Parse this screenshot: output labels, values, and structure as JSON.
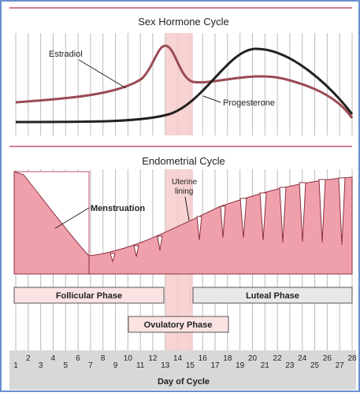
{
  "top_panel": {
    "title": "Sex Hormone Cycle",
    "labels": [
      "Estradiol",
      "Progesterone"
    ]
  },
  "bottom_panel": {
    "title": "Endometrial Cycle",
    "labels": [
      "Menstruation",
      "Uterine",
      "lining"
    ]
  },
  "phases": [
    "Follicular Phase",
    "Luteal Phase",
    "Ovulatory Phase"
  ],
  "days": [
    "1",
    "2",
    "3",
    "4",
    "5",
    "6",
    "7",
    "8",
    "9",
    "10",
    "11",
    "12",
    "13",
    "14",
    "15",
    "16",
    "17",
    "18",
    "19",
    "20",
    "21",
    "22",
    "23",
    "24",
    "25",
    "26",
    "27",
    "28"
  ],
  "axis_title": "Day of Cycle"
}
